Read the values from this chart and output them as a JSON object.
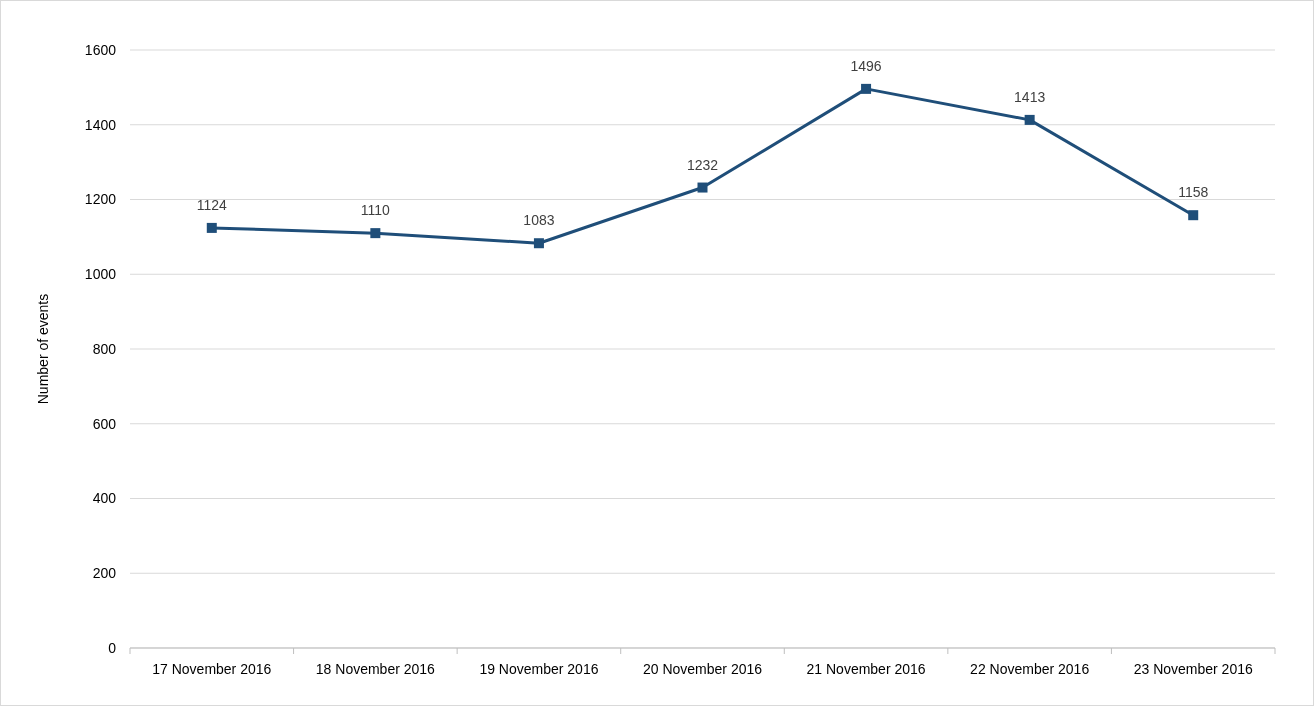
{
  "chart_data": {
    "type": "line",
    "ylabel": "Number of events",
    "categories": [
      "17 November 2016",
      "18 November 2016",
      "19 November 2016",
      "20 November 2016",
      "21 November 2016",
      "22 November 2016",
      "23 November 2016"
    ],
    "series": [
      {
        "color": "#1f4e79",
        "values": [
          1124,
          1110,
          1083,
          1232,
          1496,
          1413,
          1158
        ]
      }
    ],
    "ylim": [
      0,
      1600
    ],
    "yticks": [
      0,
      200,
      400,
      600,
      800,
      1000,
      1200,
      1400,
      1600
    ],
    "grid": "y",
    "marker": "square",
    "line_style": "solid",
    "data_labels": true
  }
}
